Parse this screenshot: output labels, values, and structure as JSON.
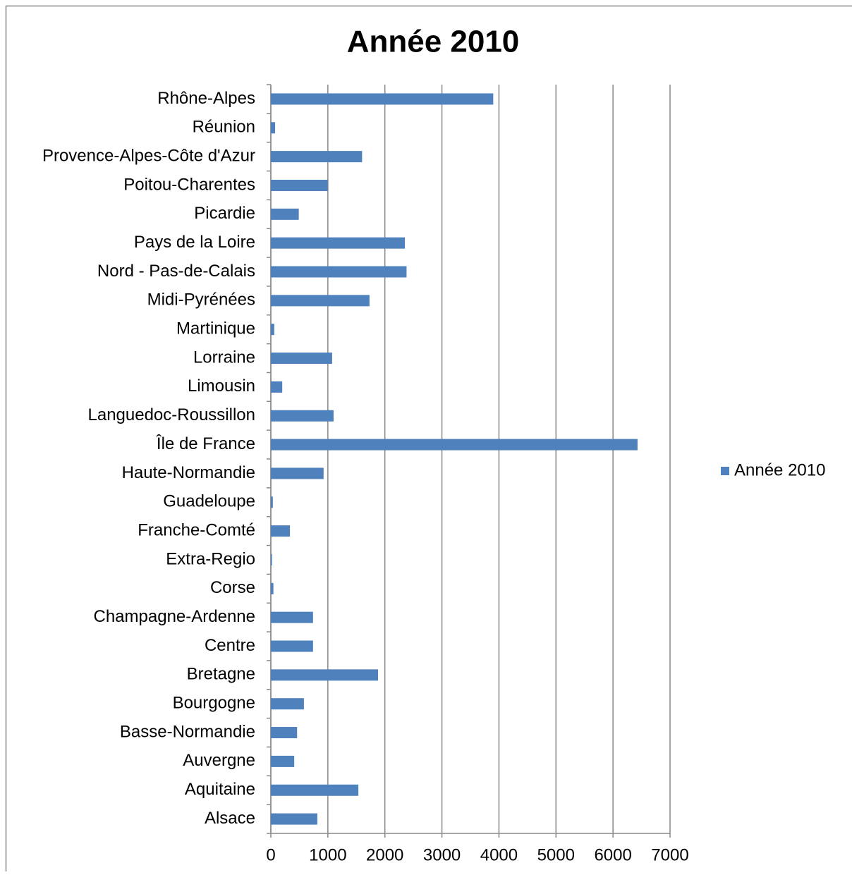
{
  "chart_data": {
    "type": "bar",
    "orientation": "horizontal",
    "title": "Année 2010",
    "categories": [
      "Rhône-Alpes",
      "Réunion",
      "Provence-Alpes-Côte d'Azur",
      "Poitou-Charentes",
      "Picardie",
      "Pays de la Loire",
      "Nord - Pas-de-Calais",
      "Midi-Pyrénées",
      "Martinique",
      "Lorraine",
      "Limousin",
      "Languedoc-Roussillon",
      "Île de France",
      "Haute-Normandie",
      "Guadeloupe",
      "Franche-Comté",
      "Extra-Regio",
      "Corse",
      "Champagne-Ardenne",
      "Centre",
      "Bretagne",
      "Bourgogne",
      "Basse-Normandie",
      "Auvergne",
      "Aquitaine",
      "Alsace"
    ],
    "series": [
      {
        "name": "Année 2010",
        "color": "#4f81bd",
        "values": [
          3900,
          75,
          1600,
          1000,
          490,
          2350,
          2380,
          1730,
          60,
          1075,
          200,
          1100,
          6430,
          925,
          35,
          335,
          20,
          45,
          740,
          740,
          1880,
          580,
          460,
          410,
          1535,
          815
        ]
      }
    ],
    "xlim": [
      0,
      7000
    ],
    "xticks": [
      0,
      1000,
      2000,
      3000,
      4000,
      5000,
      6000,
      7000
    ],
    "grid": true,
    "legend": "right"
  }
}
